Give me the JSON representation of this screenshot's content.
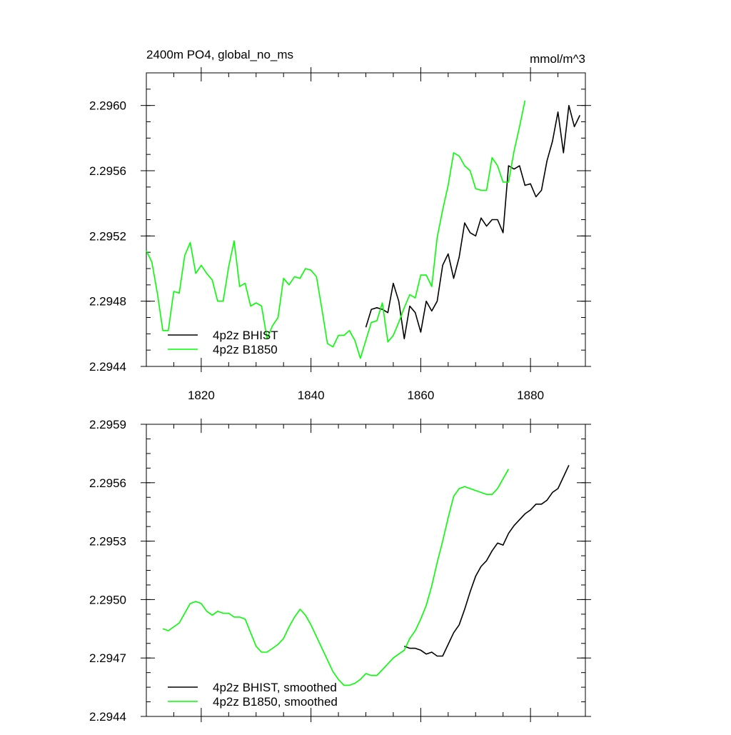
{
  "chart_data": [
    {
      "type": "line",
      "title": "2400m PO4, global_no_ms",
      "units": "mmol/m^3",
      "xlim": [
        1810,
        1890
      ],
      "ylim": [
        2.2944,
        2.2962
      ],
      "x_ticks": [
        "1820",
        "1840",
        "1860",
        "1880"
      ],
      "y_ticks": [
        "2.2944",
        "2.2948",
        "2.2952",
        "2.2956",
        "2.2960"
      ],
      "legend_position": "bottom-left",
      "series": [
        {
          "name": "4p2z BHIST",
          "color": "#000000",
          "x": [
            1850,
            1851,
            1852,
            1853,
            1854,
            1855,
            1856,
            1857,
            1858,
            1859,
            1860,
            1861,
            1862,
            1863,
            1864,
            1865,
            1866,
            1867,
            1868,
            1869,
            1870,
            1871,
            1872,
            1873,
            1874,
            1875,
            1876,
            1877,
            1878,
            1879,
            1880,
            1881,
            1882,
            1883,
            1884,
            1885,
            1886,
            1887,
            1888,
            1889
          ],
          "y": [
            2.29464,
            2.29475,
            2.29476,
            2.29475,
            2.29473,
            2.29491,
            2.2948,
            2.29457,
            2.29477,
            2.29473,
            2.29461,
            2.2948,
            2.29474,
            2.2948,
            2.29502,
            2.29509,
            2.29494,
            2.29507,
            2.29528,
            2.29522,
            2.2952,
            2.29531,
            2.29526,
            2.2953,
            2.2953,
            2.29522,
            2.29563,
            2.29561,
            2.29563,
            2.29551,
            2.29552,
            2.29544,
            2.29548,
            2.29566,
            2.29578,
            2.29596,
            2.29571,
            2.296,
            2.29587,
            2.29594
          ]
        },
        {
          "name": "4p2z B1850",
          "color": "#00ff00",
          "x": [
            1810,
            1811,
            1812,
            1813,
            1814,
            1815,
            1816,
            1817,
            1818,
            1819,
            1820,
            1821,
            1822,
            1823,
            1824,
            1825,
            1826,
            1827,
            1828,
            1829,
            1830,
            1831,
            1832,
            1833,
            1834,
            1835,
            1836,
            1837,
            1838,
            1839,
            1840,
            1841,
            1842,
            1843,
            1844,
            1845,
            1846,
            1847,
            1848,
            1849,
            1850,
            1851,
            1852,
            1853,
            1854,
            1855,
            1856,
            1857,
            1858,
            1859,
            1860,
            1861,
            1862,
            1863,
            1864,
            1865,
            1866,
            1867,
            1868,
            1869,
            1870,
            1871,
            1872,
            1873,
            1874,
            1875,
            1876,
            1877,
            1878,
            1879
          ],
          "y": [
            2.29511,
            2.29504,
            2.29485,
            2.29462,
            2.29462,
            2.29486,
            2.29485,
            2.29508,
            2.29516,
            2.29497,
            2.29502,
            2.29497,
            2.29493,
            2.2948,
            2.2948,
            2.29501,
            2.29517,
            2.29489,
            2.29491,
            2.29477,
            2.29479,
            2.29477,
            2.29457,
            2.29465,
            2.2947,
            2.29494,
            2.2949,
            2.29495,
            2.29494,
            2.295,
            2.29499,
            2.29495,
            2.29475,
            2.29454,
            2.29452,
            2.29459,
            2.29459,
            2.29462,
            2.29456,
            2.29445,
            2.29456,
            2.29467,
            2.29468,
            2.29479,
            2.29455,
            2.29459,
            2.29467,
            2.29476,
            2.29484,
            2.29482,
            2.29496,
            2.29496,
            2.29489,
            2.29519,
            2.29536,
            2.29551,
            2.29571,
            2.29569,
            2.29563,
            2.2956,
            2.29549,
            2.29548,
            2.29548,
            2.29568,
            2.29563,
            2.29553,
            2.29553,
            2.29572,
            2.29587,
            2.29603
          ]
        }
      ]
    },
    {
      "type": "line",
      "xlim": [
        1810,
        1890
      ],
      "ylim": [
        2.2944,
        2.2959
      ],
      "x_ticks": [],
      "y_ticks": [
        "2.2944",
        "2.2947",
        "2.2950",
        "2.2953",
        "2.2956",
        "2.2959"
      ],
      "legend_position": "bottom-left",
      "series": [
        {
          "name": "4p2z BHIST, smoothed",
          "color": "#000000",
          "x": [
            1857,
            1858,
            1859,
            1860,
            1861,
            1862,
            1863,
            1864,
            1865,
            1866,
            1867,
            1868,
            1869,
            1870,
            1871,
            1872,
            1873,
            1874,
            1875,
            1876,
            1877,
            1878,
            1879,
            1880,
            1881,
            1882,
            1883,
            1884,
            1885,
            1886,
            1887
          ],
          "y": [
            2.29476,
            2.29475,
            2.29475,
            2.29474,
            2.29472,
            2.29473,
            2.29471,
            2.29471,
            2.29477,
            2.29483,
            2.29487,
            2.29495,
            2.29504,
            2.29512,
            2.29517,
            2.2952,
            2.29525,
            2.29529,
            2.29528,
            2.29534,
            2.29538,
            2.29541,
            2.29544,
            2.29546,
            2.29549,
            2.29549,
            2.29551,
            2.29555,
            2.29557,
            2.29563,
            2.29569
          ]
        },
        {
          "name": "4p2z B1850, smoothed",
          "color": "#00ff00",
          "x": [
            1813,
            1814,
            1815,
            1816,
            1817,
            1818,
            1819,
            1820,
            1821,
            1822,
            1823,
            1824,
            1825,
            1826,
            1827,
            1828,
            1829,
            1830,
            1831,
            1832,
            1833,
            1834,
            1835,
            1836,
            1837,
            1838,
            1839,
            1840,
            1841,
            1842,
            1843,
            1844,
            1845,
            1846,
            1847,
            1848,
            1849,
            1850,
            1851,
            1852,
            1853,
            1854,
            1855,
            1856,
            1857,
            1858,
            1859,
            1860,
            1861,
            1862,
            1863,
            1864,
            1865,
            1866,
            1867,
            1868,
            1869,
            1870,
            1871,
            1872,
            1873,
            1874,
            1875,
            1876
          ],
          "y": [
            2.29485,
            2.29484,
            2.29486,
            2.29488,
            2.29493,
            2.29498,
            2.29499,
            2.29498,
            2.29494,
            2.29492,
            2.29494,
            2.29493,
            2.29493,
            2.29491,
            2.29491,
            2.2949,
            2.29483,
            2.29476,
            2.29473,
            2.29473,
            2.29475,
            2.29477,
            2.2948,
            2.29486,
            2.29491,
            2.29495,
            2.29492,
            2.29487,
            2.29481,
            2.29475,
            2.29469,
            2.29463,
            2.29459,
            2.29456,
            2.29456,
            2.29457,
            2.29459,
            2.29462,
            2.29461,
            2.29461,
            2.29464,
            2.29467,
            2.2947,
            2.29472,
            2.29474,
            2.2948,
            2.29484,
            2.2949,
            2.29497,
            2.29507,
            2.29519,
            2.2953,
            2.29542,
            2.29553,
            2.29557,
            2.29558,
            2.29557,
            2.29556,
            2.29555,
            2.29554,
            2.29554,
            2.29557,
            2.29562,
            2.29567
          ]
        }
      ]
    }
  ]
}
